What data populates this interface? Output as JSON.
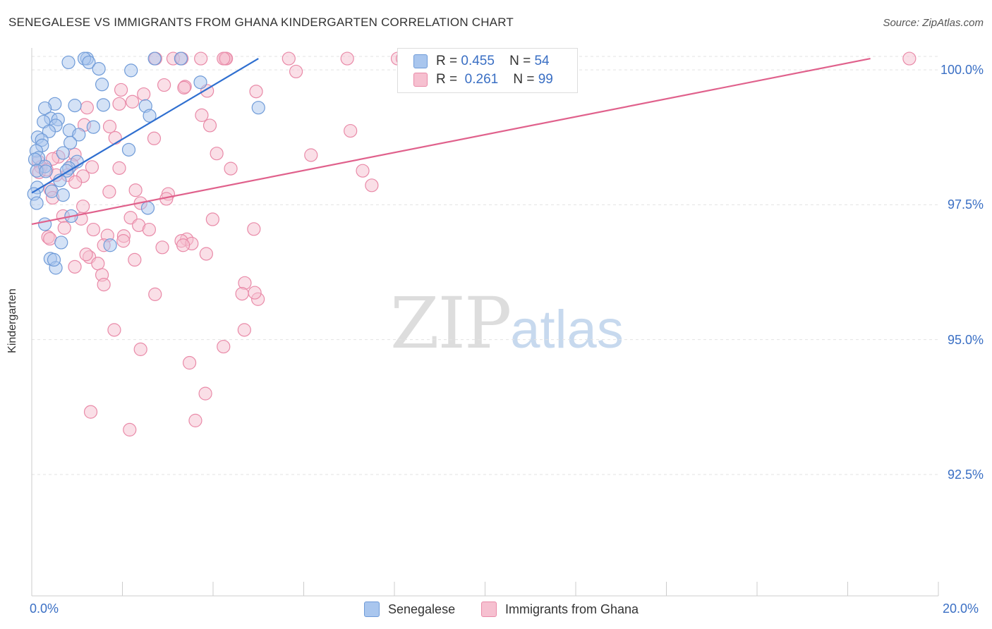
{
  "title": "SENEGALESE VS IMMIGRANTS FROM GHANA KINDERGARTEN CORRELATION CHART",
  "source": "Source: ZipAtlas.com",
  "watermark": {
    "zip": "ZIP",
    "atlas": "atlas"
  },
  "colors": {
    "blue_fill": "#a9c6ee",
    "blue_stroke": "#6f9bd8",
    "blue_line": "#2f6fd0",
    "pink_fill": "#f6c0d0",
    "pink_stroke": "#e98aa8",
    "pink_line": "#e0618c",
    "grid": "#e3e3e3",
    "axis": "#cccccc",
    "tick_text": "#3a6fc4"
  },
  "legend": {
    "rows": [
      {
        "r_label": "R =",
        "r_value": "0.455",
        "n_label": "N =",
        "n_value": "54"
      },
      {
        "r_label": "R =",
        "r_value": "0.261",
        "n_label": "N =",
        "n_value": "99"
      }
    ]
  },
  "chart_data": {
    "type": "scatter",
    "title": "SENEGALESE VS IMMIGRANTS FROM GHANA KINDERGARTEN CORRELATION CHART",
    "xlabel": "",
    "ylabel": "Kindergarten",
    "xlim": [
      0,
      20
    ],
    "ylim": [
      90.25,
      100.25
    ],
    "x_tick_labels": [
      "0.0%",
      "20.0%"
    ],
    "y_ticks": [
      92.5,
      95.0,
      97.5,
      100.0
    ],
    "y_tick_labels": [
      "92.5%",
      "95.0%",
      "97.5%",
      "100.0%"
    ],
    "grid": true,
    "legend_position": "bottom",
    "series": [
      {
        "name": "Senegalese",
        "color": "#a9c6ee",
        "trend": {
          "x": [
            0.0,
            5.0
          ],
          "y": [
            97.72,
            100.21
          ]
        },
        "points": [
          [
            1.22,
            100.21
          ],
          [
            1.16,
            100.21
          ],
          [
            2.71,
            100.21
          ],
          [
            3.29,
            100.21
          ],
          [
            0.81,
            100.14
          ],
          [
            1.26,
            100.14
          ],
          [
            1.48,
            100.02
          ],
          [
            2.19,
            99.99
          ],
          [
            3.72,
            99.77
          ],
          [
            1.55,
            99.73
          ],
          [
            0.51,
            99.37
          ],
          [
            1.58,
            99.35
          ],
          [
            5.0,
            99.3
          ],
          [
            0.29,
            99.29
          ],
          [
            0.95,
            99.34
          ],
          [
            2.51,
            99.33
          ],
          [
            2.6,
            99.15
          ],
          [
            0.42,
            99.1
          ],
          [
            0.58,
            99.08
          ],
          [
            0.26,
            99.04
          ],
          [
            0.53,
            98.97
          ],
          [
            0.83,
            98.88
          ],
          [
            1.36,
            98.94
          ],
          [
            0.38,
            98.86
          ],
          [
            1.04,
            98.8
          ],
          [
            0.13,
            98.75
          ],
          [
            0.22,
            98.7
          ],
          [
            0.85,
            98.65
          ],
          [
            0.23,
            98.6
          ],
          [
            2.14,
            98.52
          ],
          [
            0.1,
            98.5
          ],
          [
            0.69,
            98.46
          ],
          [
            0.15,
            98.37
          ],
          [
            0.07,
            98.34
          ],
          [
            1.0,
            98.3
          ],
          [
            0.29,
            98.21
          ],
          [
            0.82,
            98.18
          ],
          [
            0.11,
            98.13
          ],
          [
            0.77,
            98.13
          ],
          [
            0.31,
            98.12
          ],
          [
            0.62,
            97.95
          ],
          [
            0.12,
            97.82
          ],
          [
            0.44,
            97.75
          ],
          [
            0.69,
            97.68
          ],
          [
            0.05,
            97.7
          ],
          [
            0.11,
            97.53
          ],
          [
            2.56,
            97.44
          ],
          [
            0.87,
            97.29
          ],
          [
            0.29,
            97.14
          ],
          [
            0.65,
            96.8
          ],
          [
            1.73,
            96.75
          ],
          [
            0.41,
            96.5
          ],
          [
            0.53,
            96.33
          ],
          [
            0.49,
            96.48
          ]
        ]
      },
      {
        "name": "Immigrants from Ghana",
        "color": "#f6c0d0",
        "trend": {
          "x": [
            0.0,
            18.5
          ],
          "y": [
            97.14,
            100.21
          ]
        },
        "points": [
          [
            2.73,
            100.21
          ],
          [
            3.12,
            100.21
          ],
          [
            3.31,
            100.21
          ],
          [
            3.73,
            100.21
          ],
          [
            4.27,
            100.21
          ],
          [
            4.29,
            100.21
          ],
          [
            4.23,
            100.21
          ],
          [
            5.67,
            100.21
          ],
          [
            6.96,
            100.21
          ],
          [
            8.07,
            100.21
          ],
          [
            8.18,
            100.21
          ],
          [
            19.36,
            100.21
          ],
          [
            5.83,
            99.97
          ],
          [
            2.92,
            99.72
          ],
          [
            3.38,
            99.69
          ],
          [
            3.36,
            99.67
          ],
          [
            1.97,
            99.63
          ],
          [
            3.87,
            99.61
          ],
          [
            4.95,
            99.6
          ],
          [
            2.47,
            99.55
          ],
          [
            2.22,
            99.41
          ],
          [
            1.93,
            99.37
          ],
          [
            1.22,
            99.3
          ],
          [
            3.75,
            99.16
          ],
          [
            3.93,
            98.97
          ],
          [
            1.72,
            98.95
          ],
          [
            7.03,
            98.87
          ],
          [
            1.16,
            98.98
          ],
          [
            1.84,
            98.74
          ],
          [
            2.7,
            98.73
          ],
          [
            4.08,
            98.45
          ],
          [
            6.16,
            98.42
          ],
          [
            0.95,
            98.43
          ],
          [
            0.59,
            98.39
          ],
          [
            0.46,
            98.35
          ],
          [
            0.15,
            98.3
          ],
          [
            0.89,
            98.24
          ],
          [
            1.33,
            98.2
          ],
          [
            1.93,
            98.18
          ],
          [
            0.2,
            98.2
          ],
          [
            1.13,
            98.03
          ],
          [
            4.39,
            98.17
          ],
          [
            7.3,
            98.13
          ],
          [
            0.16,
            98.1
          ],
          [
            0.33,
            98.15
          ],
          [
            0.79,
            98.05
          ],
          [
            0.54,
            98.05
          ],
          [
            0.96,
            97.92
          ],
          [
            7.5,
            97.86
          ],
          [
            0.41,
            97.78
          ],
          [
            2.29,
            97.77
          ],
          [
            1.71,
            97.74
          ],
          [
            3.01,
            97.7
          ],
          [
            0.46,
            97.63
          ],
          [
            1.13,
            97.47
          ],
          [
            2.4,
            97.53
          ],
          [
            2.97,
            97.61
          ],
          [
            1.09,
            97.24
          ],
          [
            0.69,
            97.29
          ],
          [
            2.18,
            97.26
          ],
          [
            3.99,
            97.23
          ],
          [
            2.36,
            97.12
          ],
          [
            0.72,
            97.07
          ],
          [
            1.36,
            97.04
          ],
          [
            2.59,
            97.04
          ],
          [
            4.9,
            97.05
          ],
          [
            2.03,
            96.92
          ],
          [
            2.02,
            96.83
          ],
          [
            1.67,
            96.93
          ],
          [
            0.36,
            96.9
          ],
          [
            3.42,
            96.86
          ],
          [
            3.3,
            96.83
          ],
          [
            3.53,
            96.78
          ],
          [
            1.59,
            96.75
          ],
          [
            2.88,
            96.71
          ],
          [
            1.27,
            96.53
          ],
          [
            1.2,
            96.58
          ],
          [
            3.85,
            96.59
          ],
          [
            2.27,
            96.48
          ],
          [
            1.46,
            96.41
          ],
          [
            0.95,
            96.35
          ],
          [
            1.55,
            96.2
          ],
          [
            4.7,
            96.05
          ],
          [
            4.64,
            95.85
          ],
          [
            2.72,
            95.84
          ],
          [
            4.99,
            95.75
          ],
          [
            1.59,
            96.02
          ],
          [
            4.92,
            95.87
          ],
          [
            1.82,
            95.18
          ],
          [
            4.69,
            95.18
          ],
          [
            4.23,
            94.87
          ],
          [
            2.4,
            94.82
          ],
          [
            3.48,
            94.57
          ],
          [
            3.83,
            94.0
          ],
          [
            1.3,
            93.66
          ],
          [
            3.61,
            93.5
          ],
          [
            2.16,
            93.33
          ],
          [
            0.4,
            96.87
          ],
          [
            3.34,
            96.75
          ]
        ]
      }
    ]
  }
}
